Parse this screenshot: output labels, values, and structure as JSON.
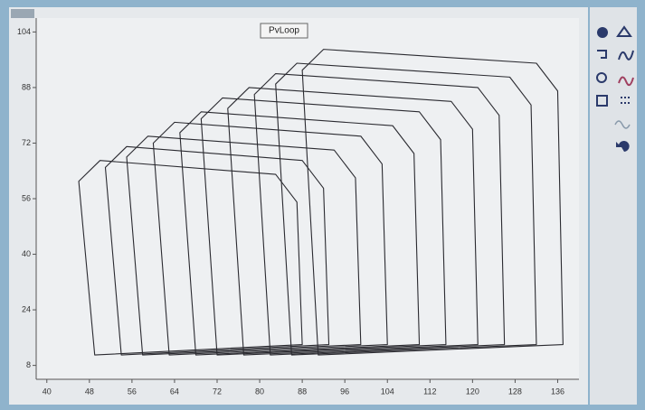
{
  "chart_data": {
    "type": "line",
    "title": "PvLoop",
    "xlim": [
      38,
      140
    ],
    "ylim": [
      4,
      108
    ],
    "xticks": [
      40,
      48,
      56,
      64,
      72,
      80,
      88,
      96,
      104,
      112,
      120,
      128,
      136
    ],
    "yticks": [
      8,
      24,
      40,
      56,
      72,
      88,
      104
    ],
    "grid": false,
    "closed": true,
    "series": [
      {
        "color": "#2a2a30",
        "x": [
          137,
          136,
          132,
          92,
          88,
          91
        ],
        "values": [
          14,
          87,
          95,
          99,
          93,
          11
        ]
      },
      {
        "color": "#2a2a30",
        "x": [
          132,
          131,
          127,
          87,
          83,
          86
        ],
        "values": [
          14,
          83,
          91,
          95,
          89,
          11
        ]
      },
      {
        "color": "#2a2a30",
        "x": [
          126,
          125,
          121,
          83,
          79,
          82
        ],
        "values": [
          14,
          80,
          88,
          92,
          86,
          11
        ]
      },
      {
        "color": "#2a2a30",
        "x": [
          121,
          120,
          116,
          78,
          74,
          77
        ],
        "values": [
          14,
          76,
          84,
          88,
          82,
          11
        ]
      },
      {
        "color": "#2a2a30",
        "x": [
          115,
          114,
          110,
          73,
          69,
          72
        ],
        "values": [
          14,
          73,
          81,
          85,
          79,
          11
        ]
      },
      {
        "color": "#2a2a30",
        "x": [
          110,
          109,
          105,
          69,
          65,
          68
        ],
        "values": [
          14,
          69,
          77,
          81,
          75,
          11
        ]
      },
      {
        "color": "#2a2a30",
        "x": [
          104,
          103,
          99,
          64,
          60,
          63
        ],
        "values": [
          14,
          66,
          74,
          78,
          72,
          11
        ]
      },
      {
        "color": "#2a2a30",
        "x": [
          99,
          98,
          94,
          59,
          55,
          58
        ],
        "values": [
          14,
          62,
          70,
          74,
          68,
          11
        ]
      },
      {
        "color": "#2a2a30",
        "x": [
          93,
          92,
          88,
          55,
          51,
          54
        ],
        "values": [
          14,
          59,
          67,
          71,
          65,
          11
        ]
      },
      {
        "color": "#2a2a30",
        "x": [
          88,
          87,
          83,
          50,
          46,
          49
        ],
        "values": [
          14,
          55,
          63,
          67,
          61,
          11
        ]
      }
    ]
  }
}
